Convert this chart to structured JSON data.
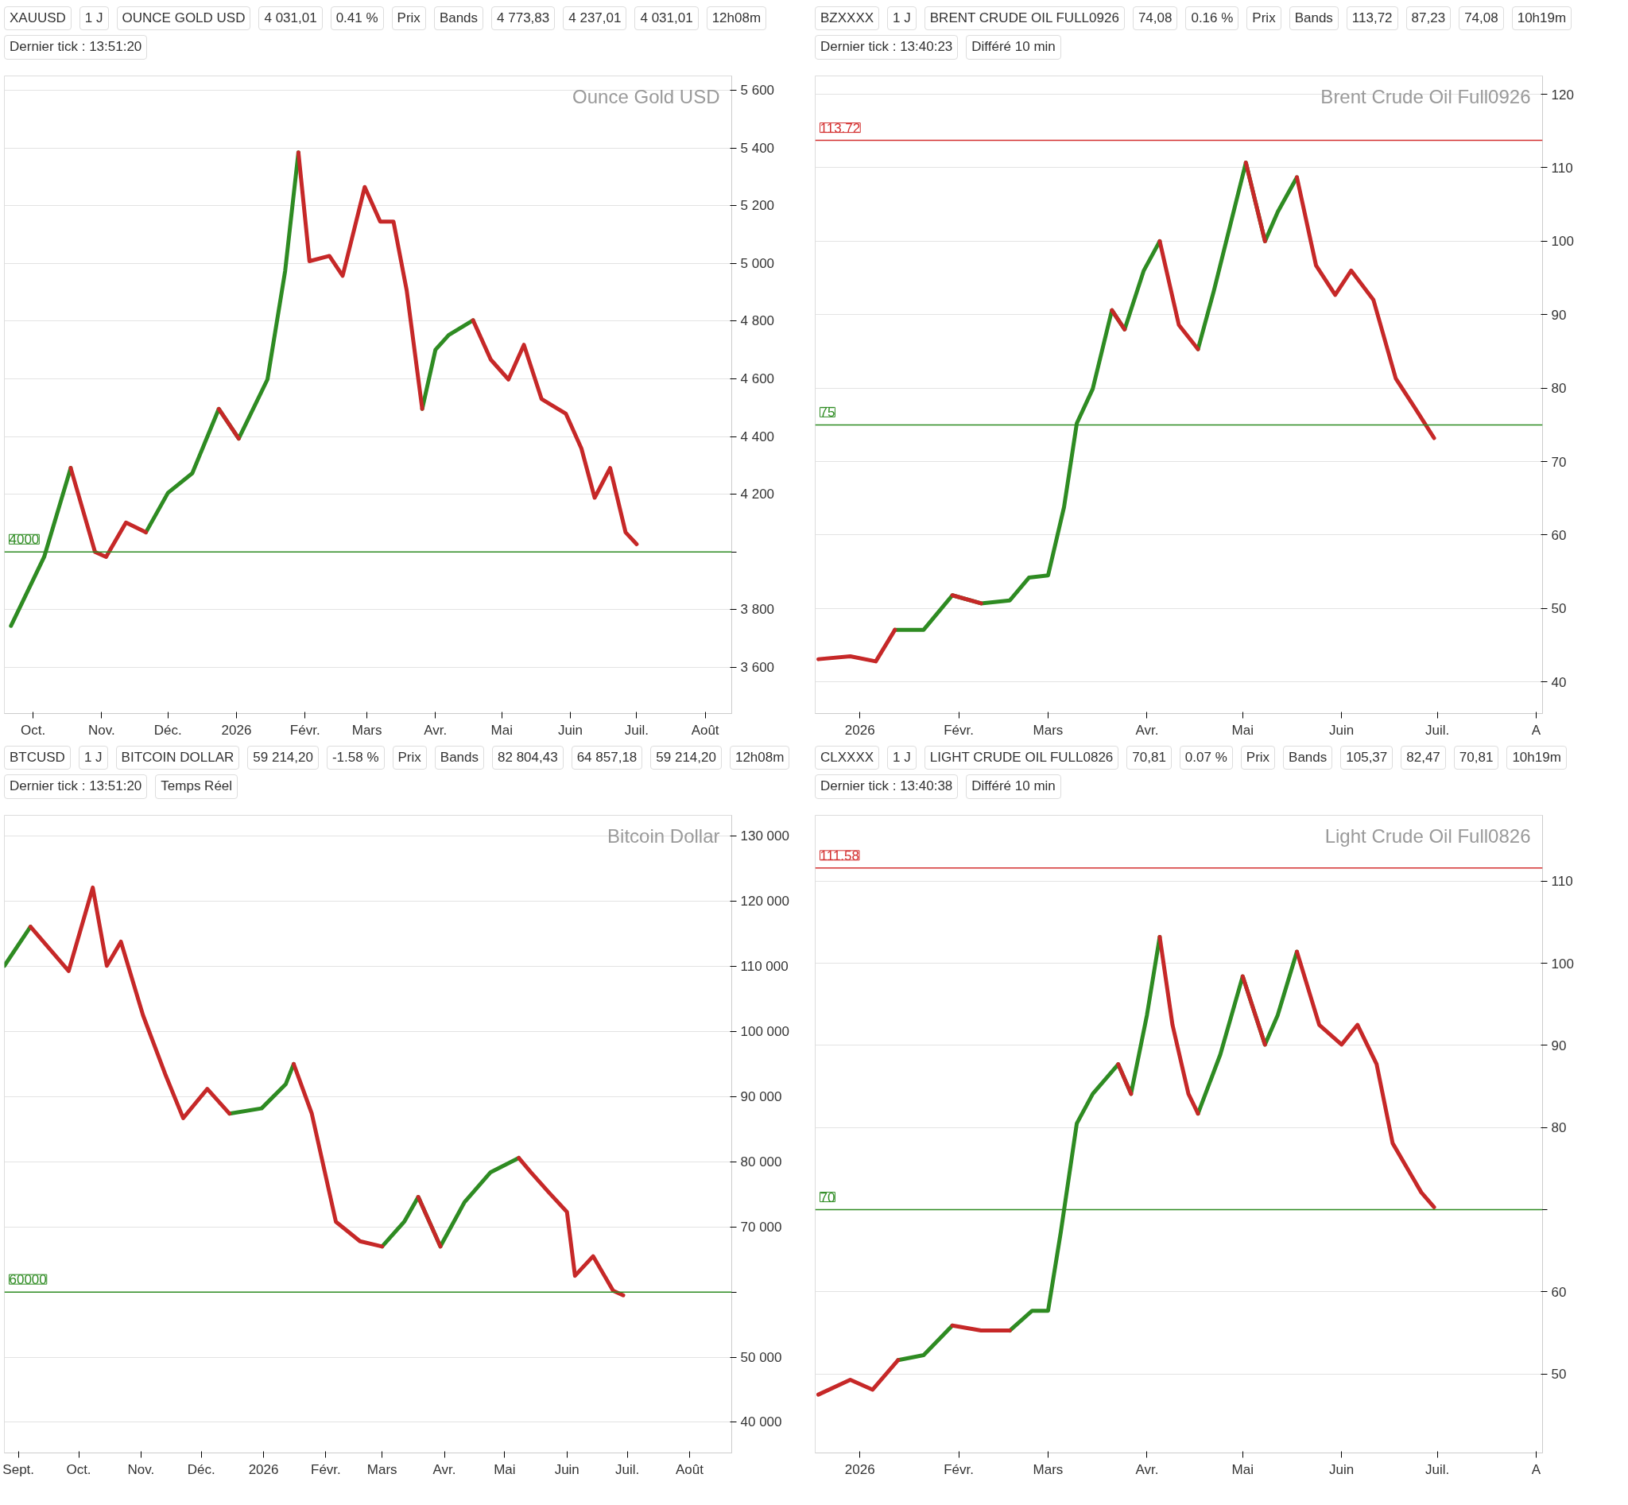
{
  "chart_data": [
    {
      "type": "line",
      "title": "Ounce Gold USD",
      "grid": "y",
      "xlim": [
        "2025-09-18",
        "2026-08-13"
      ],
      "ylim": [
        3440,
        5650
      ],
      "xticks": [
        {
          "value": "2025-10-01",
          "label": "Oct."
        },
        {
          "value": "2025-11-01",
          "label": "Nov."
        },
        {
          "value": "2025-12-01",
          "label": "Déc."
        },
        {
          "value": "2026-01-01",
          "label": "2026"
        },
        {
          "value": "2026-02-01",
          "label": "Févr."
        },
        {
          "value": "2026-03-01",
          "label": "Mars"
        },
        {
          "value": "2026-04-01",
          "label": "Avr."
        },
        {
          "value": "2026-05-01",
          "label": "Mai"
        },
        {
          "value": "2026-06-01",
          "label": "Juin"
        },
        {
          "value": "2026-07-01",
          "label": "Juil."
        },
        {
          "value": "2026-08-01",
          "label": "Août"
        }
      ],
      "yticks": [
        {
          "value": 3600,
          "label": "3 600"
        },
        {
          "value": 3800,
          "label": "3 800"
        },
        {
          "value": 4000,
          "label": null
        },
        {
          "value": 4200,
          "label": "4 200"
        },
        {
          "value": 4400,
          "label": "4 400"
        },
        {
          "value": 4600,
          "label": "4 600"
        },
        {
          "value": 4800,
          "label": "4 800"
        },
        {
          "value": 5000,
          "label": "5 000"
        },
        {
          "value": 5200,
          "label": "5 200"
        },
        {
          "value": 5400,
          "label": "5 400"
        },
        {
          "value": 5600,
          "label": "5 600"
        }
      ],
      "x": [
        "2025-09-21",
        "2025-10-06",
        "2025-10-18",
        "2025-10-29",
        "2025-11-03",
        "2025-11-12",
        "2025-11-21",
        "2025-12-01",
        "2025-12-12",
        "2025-12-24",
        "2026-01-02",
        "2026-01-15",
        "2026-01-23",
        "2026-01-29",
        "2026-02-03",
        "2026-02-12",
        "2026-02-18",
        "2026-02-28",
        "2026-03-07",
        "2026-03-13",
        "2026-03-19",
        "2026-03-26",
        "2026-04-01",
        "2026-04-07",
        "2026-04-18",
        "2026-04-26",
        "2026-05-04",
        "2026-05-11",
        "2026-05-19",
        "2026-05-30",
        "2026-06-06",
        "2026-06-12",
        "2026-06-19",
        "2026-06-26",
        "2026-07-01"
      ],
      "series": [
        {
          "color": "#2e8b22",
          "values": [
            3744,
            3983,
            4291,
            null,
            null,
            null,
            4068,
            4205,
            4273,
            4496,
            4393,
            4598,
            4974,
            5385,
            null,
            null,
            null,
            null,
            null,
            null,
            null,
            4496,
            4701,
            4752,
            4803,
            null,
            null,
            null,
            null,
            null,
            null,
            null,
            null,
            null,
            null
          ]
        },
        {
          "color": "#c62828",
          "values": [
            null,
            null,
            4291,
            4000,
            3983,
            4102,
            4068,
            null,
            null,
            4496,
            4393,
            null,
            null,
            5385,
            5008,
            5026,
            4957,
            5265,
            5145,
            5145,
            4906,
            4496,
            null,
            null,
            4803,
            4667,
            4598,
            4718,
            4530,
            4479,
            4359,
            4188,
            4291,
            4068,
            4027
          ]
        }
      ],
      "ref_lines": [
        {
          "axis": "y",
          "value": 4000,
          "label": "4000",
          "color": "#2e8b22"
        }
      ],
      "annotations": [
        "XAUUSD",
        "1 J",
        "OUNCE GOLD USD",
        "4 031,01",
        "0.41 %",
        "Prix",
        "Bands",
        "4 773,83",
        "4 237,01",
        "4 031,01",
        "12h08m",
        "Dernier tick : 13:51:20"
      ]
    },
    {
      "type": "line",
      "title": "Brent Crude Oil Full0926",
      "grid": "y",
      "xlim": [
        "2025-12-18",
        "2026-08-03"
      ],
      "ylim": [
        35.7,
        122.5
      ],
      "xticks": [
        {
          "value": "2026-01-01",
          "label": "2026"
        },
        {
          "value": "2026-02-01",
          "label": "Févr."
        },
        {
          "value": "2026-03-01",
          "label": "Mars"
        },
        {
          "value": "2026-04-01",
          "label": "Avr."
        },
        {
          "value": "2026-05-01",
          "label": "Mai"
        },
        {
          "value": "2026-06-01",
          "label": "Juin"
        },
        {
          "value": "2026-07-01",
          "label": "Juil."
        },
        {
          "value": "2026-08-01",
          "label": "A"
        }
      ],
      "yticks": [
        40,
        50,
        60,
        70,
        80,
        90,
        100,
        110,
        120
      ],
      "x": [
        "2025-12-19",
        "2025-12-29",
        "2026-01-06",
        "2026-01-12",
        "2026-01-21",
        "2026-01-30",
        "2026-02-08",
        "2026-02-17",
        "2026-02-23",
        "2026-03-01",
        "2026-03-06",
        "2026-03-10",
        "2026-03-15",
        "2026-03-21",
        "2026-03-25",
        "2026-03-31",
        "2026-04-05",
        "2026-04-11",
        "2026-04-17",
        "2026-04-22",
        "2026-04-27",
        "2026-05-02",
        "2026-05-08",
        "2026-05-12",
        "2026-05-18",
        "2026-05-24",
        "2026-05-30",
        "2026-06-04",
        "2026-06-11",
        "2026-06-18",
        "2026-06-24",
        "2026-06-30"
      ],
      "series": [
        {
          "color": "#2e8b22",
          "values": [
            null,
            null,
            null,
            47.1,
            47.1,
            51.8,
            50.7,
            51.1,
            54.2,
            54.5,
            63.8,
            75.2,
            79.9,
            90.6,
            88.0,
            96.0,
            100.0,
            null,
            85.3,
            93.3,
            102.0,
            110.7,
            100.0,
            104.0,
            108.7,
            null,
            null,
            null,
            null,
            null,
            null,
            null
          ]
        },
        {
          "color": "#c62828",
          "values": [
            43.1,
            43.5,
            42.8,
            47.1,
            null,
            51.8,
            50.7,
            null,
            null,
            null,
            null,
            null,
            null,
            90.6,
            88.0,
            null,
            100.0,
            88.6,
            85.3,
            null,
            null,
            110.7,
            100.0,
            null,
            108.7,
            96.7,
            92.7,
            96.0,
            92.0,
            81.3,
            77.3,
            73.2
          ]
        }
      ],
      "ref_lines": [
        {
          "axis": "y",
          "value": 75,
          "label": "75",
          "color": "#2e8b22"
        },
        {
          "axis": "y",
          "value": 113.72,
          "label": "113.72",
          "color": "#d32f2f"
        }
      ],
      "annotations": [
        "BZXXXX",
        "1 J",
        "BRENT CRUDE OIL FULL0926",
        "74,08",
        "0.16 %",
        "Prix",
        "Bands",
        "113,72",
        "87,23",
        "74,08",
        "10h19m",
        "Dernier tick : 13:40:23",
        "Différé 10 min"
      ]
    },
    {
      "type": "line",
      "title": "Bitcoin Dollar",
      "grid": "y",
      "xlim": [
        "2025-08-25",
        "2026-08-22"
      ],
      "ylim": [
        35300,
        133200
      ],
      "xticks": [
        {
          "value": "2025-09-01",
          "label": "Sept."
        },
        {
          "value": "2025-10-01",
          "label": "Oct."
        },
        {
          "value": "2025-11-01",
          "label": "Nov."
        },
        {
          "value": "2025-12-01",
          "label": "Déc."
        },
        {
          "value": "2026-01-01",
          "label": "2026"
        },
        {
          "value": "2026-02-01",
          "label": "Févr."
        },
        {
          "value": "2026-03-01",
          "label": "Mars"
        },
        {
          "value": "2026-04-01",
          "label": "Avr."
        },
        {
          "value": "2026-05-01",
          "label": "Mai"
        },
        {
          "value": "2026-06-01",
          "label": "Juin"
        },
        {
          "value": "2026-07-01",
          "label": "Juil."
        },
        {
          "value": "2026-08-01",
          "label": "Août"
        }
      ],
      "yticks": [
        {
          "value": 40000,
          "label": "40 000"
        },
        {
          "value": 50000,
          "label": "50 000"
        },
        {
          "value": 60000,
          "label": null
        },
        {
          "value": 70000,
          "label": "70 000"
        },
        {
          "value": 80000,
          "label": "80 000"
        },
        {
          "value": 90000,
          "label": "90 000"
        },
        {
          "value": 100000,
          "label": "100 000"
        },
        {
          "value": 110000,
          "label": "110 000"
        },
        {
          "value": 120000,
          "label": "120 000"
        },
        {
          "value": 130000,
          "label": "130 000"
        }
      ],
      "x": [
        "2025-08-25",
        "2025-09-07",
        "2025-09-26",
        "2025-10-08",
        "2025-10-15",
        "2025-10-22",
        "2025-11-02",
        "2025-11-13",
        "2025-11-22",
        "2025-12-04",
        "2025-12-15",
        "2025-12-31",
        "2026-01-12",
        "2026-01-16",
        "2026-01-25",
        "2026-02-06",
        "2026-02-18",
        "2026-03-01",
        "2026-03-12",
        "2026-03-19",
        "2026-03-30",
        "2026-04-11",
        "2026-04-24",
        "2026-05-08",
        "2026-05-14",
        "2026-05-23",
        "2026-06-01",
        "2026-06-05",
        "2026-06-14",
        "2026-06-24",
        "2026-06-29"
      ],
      "series": [
        {
          "color": "#2e8b22",
          "values": [
            110100,
            116100,
            null,
            null,
            null,
            null,
            null,
            null,
            null,
            null,
            87400,
            88200,
            91900,
            95000,
            null,
            null,
            null,
            67000,
            70800,
            74600,
            67000,
            73800,
            78400,
            80600,
            null,
            null,
            null,
            null,
            null,
            null,
            null
          ]
        },
        {
          "color": "#c62828",
          "values": [
            null,
            116100,
            109300,
            122100,
            110100,
            113800,
            102500,
            93500,
            86700,
            91200,
            87400,
            null,
            null,
            95000,
            87400,
            70800,
            67800,
            67000,
            null,
            74600,
            67000,
            null,
            null,
            80600,
            78400,
            75300,
            72300,
            62500,
            65500,
            60200,
            59500
          ]
        }
      ],
      "ref_lines": [
        {
          "axis": "y",
          "value": 60000,
          "label": "60000",
          "color": "#2e8b22"
        }
      ],
      "annotations": [
        "BTCUSD",
        "1 J",
        "BITCOIN DOLLAR",
        "59 214,20",
        "-1.58 %",
        "Prix",
        "Bands",
        "82 804,43",
        "64 857,18",
        "59 214,20",
        "12h08m",
        "Dernier tick : 13:51:20",
        "Temps Réel"
      ]
    },
    {
      "type": "line",
      "title": "Light Crude Oil Full0826",
      "grid": "y",
      "xlim": [
        "2025-12-18",
        "2026-08-03"
      ],
      "ylim": [
        40.4,
        118
      ],
      "xticks": [
        {
          "value": "2026-01-01",
          "label": "2026"
        },
        {
          "value": "2026-02-01",
          "label": "Févr."
        },
        {
          "value": "2026-03-01",
          "label": "Mars"
        },
        {
          "value": "2026-04-01",
          "label": "Avr."
        },
        {
          "value": "2026-05-01",
          "label": "Mai"
        },
        {
          "value": "2026-06-01",
          "label": "Juin"
        },
        {
          "value": "2026-07-01",
          "label": "Juil."
        },
        {
          "value": "2026-08-01",
          "label": "A"
        }
      ],
      "yticks": [
        50,
        60,
        {
          "value": 70,
          "label": null
        },
        80,
        90,
        100,
        110
      ],
      "x": [
        "2025-12-19",
        "2025-12-29",
        "2026-01-05",
        "2026-01-13",
        "2026-01-21",
        "2026-01-30",
        "2026-02-08",
        "2026-02-17",
        "2026-02-24",
        "2026-03-01",
        "2026-03-05",
        "2026-03-10",
        "2026-03-15",
        "2026-03-23",
        "2026-03-27",
        "2026-04-01",
        "2026-04-05",
        "2026-04-09",
        "2026-04-14",
        "2026-04-17",
        "2026-04-24",
        "2026-05-01",
        "2026-05-08",
        "2026-05-12",
        "2026-05-18",
        "2026-05-25",
        "2026-06-01",
        "2026-06-06",
        "2026-06-12",
        "2026-06-17",
        "2026-06-26",
        "2026-06-30"
      ],
      "series": [
        {
          "color": "#2e8b22",
          "values": [
            null,
            null,
            null,
            51.7,
            52.3,
            55.9,
            null,
            55.3,
            57.7,
            57.7,
            67.3,
            80.5,
            84.1,
            87.7,
            84.1,
            93.7,
            103.2,
            null,
            null,
            81.7,
            88.9,
            98.4,
            90.1,
            93.7,
            101.4,
            null,
            null,
            null,
            null,
            null,
            null,
            null
          ]
        },
        {
          "color": "#c62828",
          "values": [
            47.5,
            49.3,
            48.1,
            51.7,
            null,
            55.9,
            55.3,
            55.3,
            null,
            null,
            null,
            null,
            null,
            87.7,
            84.1,
            null,
            103.2,
            92.5,
            84.1,
            81.7,
            null,
            98.4,
            90.1,
            null,
            101.4,
            92.5,
            90.1,
            92.5,
            87.7,
            78.1,
            72.1,
            70.3
          ]
        }
      ],
      "ref_lines": [
        {
          "axis": "y",
          "value": 70,
          "label": "70",
          "color": "#2e8b22"
        },
        {
          "axis": "y",
          "value": 111.58,
          "label": "111.58",
          "color": "#d32f2f"
        }
      ],
      "annotations": [
        "CLXXXX",
        "1 J",
        "LIGHT CRUDE OIL FULL0826",
        "70,81",
        "0.07 %",
        "Prix",
        "Bands",
        "105,37",
        "82,47",
        "70,81",
        "10h19m",
        "Dernier tick : 13:40:38",
        "Différé 10 min"
      ]
    }
  ]
}
